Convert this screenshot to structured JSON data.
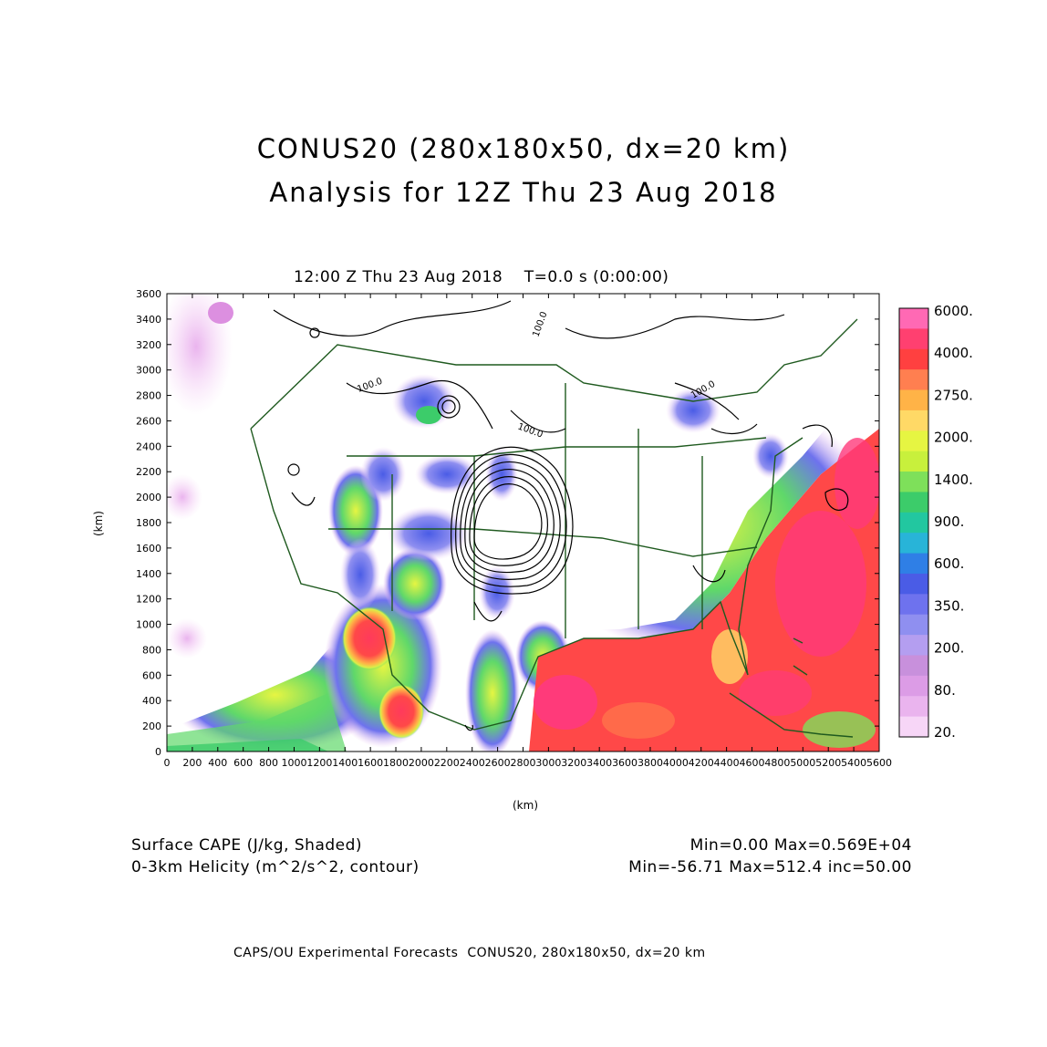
{
  "title": {
    "line1": "CONUS20 (280x180x50, dx=20 km)",
    "line2": "Analysis for 12Z Thu 23 Aug 2018"
  },
  "plot": {
    "header": "12:00 Z Thu 23 Aug 2018    T=0.0 s (0:00:00)",
    "x_unit": "(km)",
    "y_unit": "(km)",
    "x_ticks": [
      "0",
      "200",
      "400",
      "600",
      "800",
      "1000",
      "1200",
      "1400",
      "1600",
      "1800",
      "2000",
      "2200",
      "2400",
      "2600",
      "2800",
      "3000",
      "3200",
      "3400",
      "3600",
      "3800",
      "4000",
      "4200",
      "4400",
      "4600",
      "4800",
      "5000",
      "5200",
      "5400",
      "5600"
    ],
    "y_ticks": [
      "0",
      "200",
      "400",
      "600",
      "800",
      "1000",
      "1200",
      "1400",
      "1600",
      "1800",
      "2000",
      "2200",
      "2400",
      "2600",
      "2800",
      "3000",
      "3200",
      "3400",
      "3600"
    ],
    "contour_labels": [
      "100.0",
      "100.0",
      "100.0",
      "100.0"
    ]
  },
  "colorbar": {
    "labels": [
      "6000.",
      "4000.",
      "2750.",
      "2000.",
      "1400.",
      "900.",
      "600.",
      "350.",
      "200.",
      "80.",
      "20."
    ],
    "colors": [
      "#ff69b4",
      "#ff4070",
      "#ff4040",
      "#ff7f50",
      "#ffb347",
      "#ffd966",
      "#e6f542",
      "#c8f03c",
      "#7ee05a",
      "#3ccc6a",
      "#22c7a0",
      "#28b4d8",
      "#2f7fe6",
      "#4a5ce6",
      "#6e72ee",
      "#8f8ff0",
      "#b49ef0",
      "#c890dc",
      "#dc9ce6",
      "#eab4ee",
      "#f7d6f7"
    ]
  },
  "notes": {
    "left1": "Surface CAPE (J/kg, Shaded)",
    "left2": "0-3km Helicity (m^2/s^2, contour)",
    "right1": "Min=0.00 Max=0.569E+04",
    "right2": "Min=-56.71 Max=512.4 inc=50.00"
  },
  "footer": "CAPS/OU Experimental Forecasts  CONUS20, 280x180x50, dx=20 km"
}
